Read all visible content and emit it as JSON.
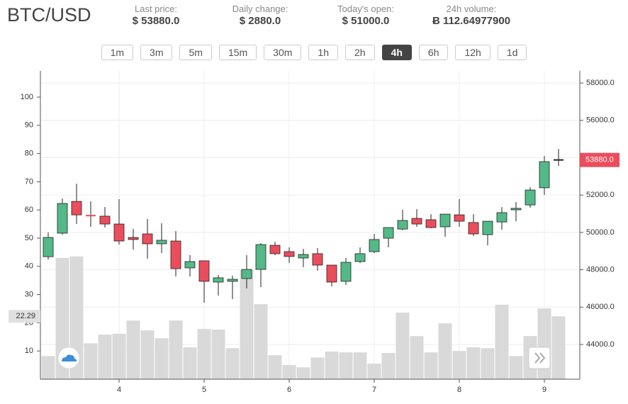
{
  "header": {
    "title": "BTC/USD",
    "stats": [
      {
        "label": "Last price:",
        "value": "$ 53880.0"
      },
      {
        "label": "Daily change:",
        "value": "$ 2880.0"
      },
      {
        "label": "Today's open:",
        "value": "$ 51000.0"
      },
      {
        "label": "24h volume:",
        "value": "Ƀ 112.64977900"
      }
    ],
    "intervals": [
      "1m",
      "3m",
      "5m",
      "15m",
      "30m",
      "1h",
      "2h",
      "4h",
      "6h",
      "12h",
      "1d"
    ],
    "active": "4h"
  },
  "chart_data": {
    "type": "candlestick",
    "categories": [
      null,
      null,
      null,
      null,
      null,
      "4",
      null,
      null,
      null,
      null,
      null,
      "5",
      null,
      null,
      null,
      null,
      null,
      "6",
      null,
      null,
      null,
      null,
      null,
      "7",
      null,
      null,
      null,
      null,
      null,
      "8",
      null,
      null,
      null,
      null,
      null,
      "9",
      null
    ],
    "open": [
      48700,
      49960,
      51660,
      50900,
      50870,
      50450,
      49730,
      49920,
      49390,
      49540,
      48100,
      48480,
      47340,
      47380,
      47530,
      48020,
      49310,
      48970,
      48630,
      48860,
      48250,
      47380,
      48440,
      48970,
      49690,
      50180,
      50750,
      50680,
      50300,
      50940,
      50530,
      49880,
      50560,
      51210,
      51470,
      52390,
      53880
    ],
    "high": [
      50000,
      51820,
      52610,
      51660,
      51360,
      51780,
      50180,
      50720,
      50490,
      50070,
      48780,
      48480,
      47720,
      47680,
      48780,
      49430,
      49500,
      49200,
      49120,
      49160,
      48250,
      48630,
      49200,
      49920,
      50260,
      51210,
      51250,
      50980,
      50980,
      51780,
      50980,
      50600,
      51360,
      51630,
      52420,
      54090,
      54470
    ],
    "low": [
      48550,
      49880,
      50450,
      50300,
      50260,
      49350,
      49080,
      48590,
      48890,
      47640,
      47640,
      46240,
      46620,
      46430,
      47000,
      47070,
      48780,
      48360,
      48140,
      47950,
      47110,
      47190,
      48360,
      48890,
      49200,
      50110,
      50300,
      50220,
      49770,
      50300,
      49810,
      49310,
      50150,
      50600,
      51320,
      52010,
      53560
    ],
    "close": [
      49730,
      51550,
      50940,
      50870,
      50450,
      49540,
      49620,
      49390,
      49580,
      48060,
      48440,
      47380,
      47570,
      47490,
      48020,
      49350,
      48860,
      48710,
      48820,
      48250,
      47340,
      48400,
      48860,
      49620,
      50260,
      50640,
      50450,
      50260,
      50980,
      50600,
      49920,
      50600,
      51060,
      51290,
      52270,
      53790,
      53880
    ],
    "volume": [
      8.2,
      43.0,
      43.5,
      12.7,
      15.8,
      16.1,
      20.8,
      17.3,
      14.5,
      20.8,
      11.3,
      17.8,
      17.6,
      11.0,
      38.7,
      26.6,
      8.5,
      5.0,
      4.2,
      7.7,
      9.8,
      9.5,
      9.5,
      5.5,
      9.3,
      23.6,
      15.3,
      9.5,
      19.8,
      10.0,
      11.3,
      11.0,
      26.4,
      8.2,
      15.3,
      25.1,
      22.29
    ],
    "up_color": "#53b987",
    "down_color": "#eb4d5c",
    "flat_color": "#222222",
    "volume_color": "#d9d9d9",
    "ylim": [
      0,
      109.3
    ],
    "yticks": [
      10,
      20,
      30,
      40,
      50,
      60,
      70,
      80,
      90,
      100
    ],
    "y2lim": [
      42140,
      58650
    ],
    "y2ticks": [
      {
        "value": 44000,
        "label": "44000.0"
      },
      {
        "value": 46000,
        "label": "46000.0"
      },
      {
        "value": 48000,
        "label": "48000.0"
      },
      {
        "value": 50000,
        "label": "50000.0"
      },
      {
        "value": 52000,
        "label": "52000.0"
      },
      {
        "value": 54000,
        "label": "54000.0"
      },
      {
        "value": 56000,
        "label": "56000.0"
      },
      {
        "value": 58000,
        "label": "58000.0"
      }
    ],
    "last_price": {
      "value": 53880,
      "label": "53880.0"
    },
    "crosshair": {
      "value": 22.29,
      "label": "22.29"
    },
    "grid": true
  }
}
